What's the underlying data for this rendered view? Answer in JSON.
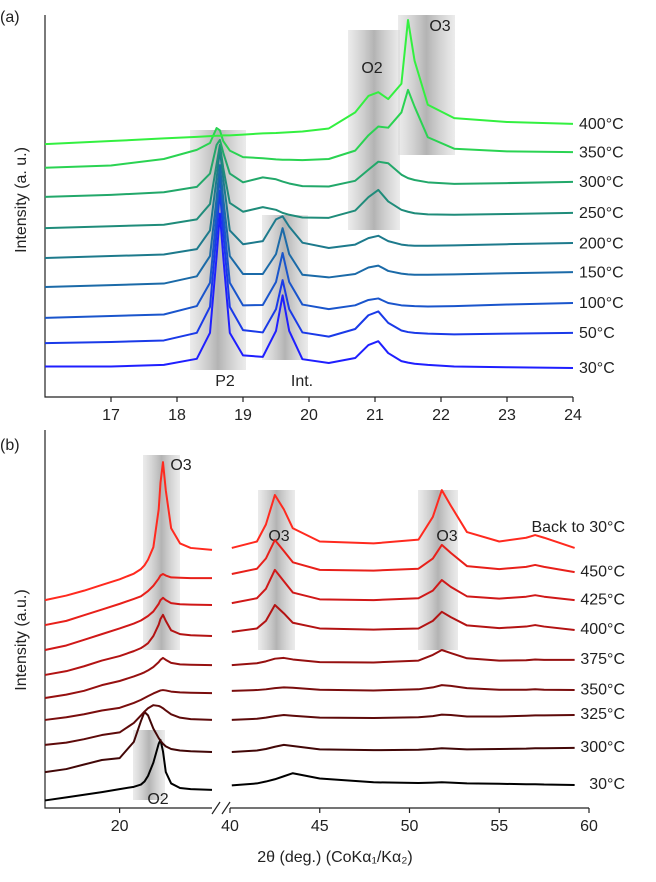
{
  "chart_data": [
    {
      "type": "line",
      "panel_label": "(a)",
      "ylabel": "Intensity (a. u.)",
      "xlim": [
        16,
        24
      ],
      "xticks": [
        17,
        18,
        19,
        20,
        21,
        22,
        23,
        24
      ],
      "ylim": [
        0,
        100
      ],
      "annotations": [
        "P2",
        "Int.",
        "O2",
        "O3"
      ],
      "x": [
        16,
        17,
        17.8,
        18.3,
        18.5,
        18.6,
        18.65,
        18.7,
        18.8,
        19.0,
        19.3,
        19.5,
        19.6,
        19.7,
        19.9,
        20.3,
        20.7,
        20.9,
        21.05,
        21.2,
        21.4,
        21.5,
        21.6,
        21.8,
        22.2,
        23,
        24
      ],
      "series": [
        {
          "name": "30°C",
          "color": "#1f1fff",
          "values": [
            8,
            8,
            8.4,
            10,
            16.8,
            36.8,
            48,
            36.8,
            16.8,
            10.9,
            10.5,
            17.3,
            26.6,
            17.3,
            9.9,
            8.9,
            10.2,
            13.6,
            14.6,
            11.5,
            9.4,
            9,
            8.7,
            8.4,
            8,
            7.8,
            7.6
          ]
        },
        {
          "name": "50°C",
          "color": "#1a3ae8",
          "values": [
            14.1,
            14.4,
            14.8,
            16.8,
            23.6,
            43.1,
            54,
            43.1,
            23.6,
            17.5,
            16.9,
            23,
            30.6,
            23,
            16.9,
            15.8,
            17.8,
            21.4,
            22.4,
            19.4,
            17.4,
            17,
            16.8,
            16.6,
            16.4,
            16.6,
            16.8
          ]
        },
        {
          "name": "100°C",
          "color": "#1a55cc",
          "values": [
            20.7,
            21.2,
            21.6,
            23.8,
            29.9,
            47.9,
            58,
            47.9,
            29.9,
            24,
            24.1,
            30.1,
            37.7,
            30.1,
            24.2,
            23,
            24,
            25.4,
            25.8,
            24.6,
            24,
            23.9,
            23.8,
            23.7,
            23.8,
            24.2,
            24.6
          ]
        },
        {
          "name": "150°C",
          "color": "#1b6aa8",
          "values": [
            28.8,
            29.3,
            29.7,
            31.6,
            36.9,
            52.1,
            60.7,
            52.1,
            36.9,
            32.2,
            32.2,
            37.4,
            44.2,
            37.4,
            32,
            31.3,
            32.2,
            33.9,
            34.4,
            33,
            32.3,
            32.1,
            32,
            32,
            32.1,
            32.4,
            32.7
          ]
        },
        {
          "name": "200°C",
          "color": "#1d7a8c",
          "values": [
            36.4,
            36.9,
            37.3,
            38.7,
            43.6,
            57.2,
            64.7,
            57.2,
            43.6,
            40,
            40.8,
            46.5,
            47.3,
            44.6,
            40.4,
            39,
            39.9,
            41.6,
            42.2,
            40.8,
            39.9,
            39.7,
            39.6,
            39.6,
            39.7,
            40,
            40.3
          ]
        },
        {
          "name": "250°C",
          "color": "#1f8c7a",
          "values": [
            44.2,
            44.7,
            45.1,
            46.5,
            50.5,
            61,
            66,
            60,
            50.8,
            48.5,
            49.7,
            49,
            48.2,
            47.7,
            47,
            46.9,
            48.8,
            52.3,
            54.2,
            51.2,
            49,
            48.5,
            48.1,
            47.8,
            47.7,
            47.9,
            48.2
          ]
        },
        {
          "name": "300°C",
          "color": "#22a86a",
          "values": [
            52.4,
            52.9,
            53.6,
            55,
            58.5,
            66,
            67.3,
            64,
            58.5,
            56.2,
            57.5,
            57,
            56.4,
            55.9,
            55.2,
            55.1,
            56.6,
            59.5,
            61.6,
            61.2,
            58.2,
            57.3,
            56.8,
            56.2,
            55.8,
            56,
            56.3
          ]
        },
        {
          "name": "350°C",
          "color": "#2ad352",
          "values": [
            60,
            60.6,
            62.3,
            64.7,
            66.5,
            70.4,
            69.8,
            67,
            64.5,
            62.8,
            62.5,
            62.2,
            62.1,
            62.1,
            62,
            62.3,
            64.5,
            68.5,
            70.8,
            70.5,
            74.5,
            80.4,
            76,
            68,
            65,
            64.3,
            64.1
          ]
        },
        {
          "name": "400°C",
          "color": "#33f040",
          "values": [
            66.2,
            67,
            67.7,
            68.1,
            68.3,
            68.4,
            68.4,
            68.5,
            68.5,
            68.7,
            69,
            69.1,
            69.2,
            69.3,
            69.5,
            70.3,
            74.5,
            78.8,
            79.8,
            78,
            82,
            98.7,
            88,
            76.5,
            73,
            72,
            71.5
          ]
        }
      ]
    },
    {
      "type": "brokenline",
      "panel_label": "(b)",
      "ylabel": "Intensity (a.u.)",
      "xlabel": "2θ (deg.) (CoKα₁/Kα₂)",
      "segments": [
        {
          "xlim": [
            15.8,
            25.2
          ],
          "xticks": [
            20
          ]
        },
        {
          "xlim": [
            40,
            60
          ],
          "xticks": [
            40,
            45,
            50,
            55,
            60
          ]
        }
      ],
      "ylim": [
        0,
        100
      ],
      "annotations": [
        "O3",
        "O3",
        "O3",
        "O2"
      ],
      "x": [
        [
          15.8,
          17,
          18,
          19,
          20,
          20.8,
          21.2,
          21.4,
          21.6,
          21.9,
          22.2,
          22.3,
          22.44,
          22.6,
          22.9,
          23.4,
          24,
          25.2
        ],
        [
          40.1,
          41.5,
          42,
          42.5,
          43,
          43.5,
          45,
          48,
          50.5,
          51.3,
          51.8,
          52.3,
          53.2,
          55,
          56.5,
          57,
          57.5,
          59.2
        ]
      ],
      "series": [
        {
          "name": "30°C",
          "color": "#000000",
          "values": [
            [
              2,
              2.8,
              3.5,
              4.2,
              5,
              5.6,
              6.2,
              7,
              8.5,
              12,
              17,
              18,
              15,
              9.5,
              6.5,
              5.3,
              5,
              4.8
            ],
            [
              6,
              6.5,
              7,
              7.6,
              8.4,
              9.2,
              7.8,
              6.8,
              6.6,
              6.7,
              6.8,
              6.7,
              6.5,
              6.4,
              6.3,
              6.3,
              6.2,
              6.1
            ]
          ]
        },
        {
          "name": "300°C",
          "color": "#420707",
          "values": [
            [
              9.5,
              10.3,
              11.5,
              12.7,
              13.2,
              17.5,
              23,
              25.4,
              24.5,
              21,
              18.5,
              17.8,
              17,
              16.3,
              15.6,
              15.2,
              15,
              14.8
            ],
            [
              14.8,
              15.2,
              15.6,
              16.2,
              16.7,
              16.4,
              15.5,
              15.3,
              15.4,
              15.6,
              15.8,
              15.7,
              15.5,
              15.6,
              15.7,
              15.8,
              15.8,
              15.9
            ]
          ]
        },
        {
          "name": "325°C",
          "color": "#5e0a0a",
          "values": [
            [
              16.7,
              17.3,
              18.2,
              19.3,
              20,
              22.5,
              24.5,
              25.5,
              26.4,
              27.2,
              27,
              26.8,
              26.4,
              25.8,
              24.8,
              23.9,
              23.5,
              23.3
            ],
            [
              23.3,
              23.6,
              23.9,
              24.3,
              24.6,
              24.4,
              23.9,
              23.8,
              24,
              24.3,
              24.7,
              24.6,
              24.2,
              24.2,
              24.4,
              24.5,
              24.5,
              24.6
            ]
          ]
        },
        {
          "name": "350°C",
          "color": "#7a0d0d",
          "values": [
            [
              23.3,
              24,
              24.8,
              25.8,
              26.5,
              27.8,
              28.6,
              29.1,
              29.6,
              30.3,
              30.9,
              31.1,
              31.2,
              31.1,
              30.8,
              30.6,
              30.5,
              30.4
            ],
            [
              31,
              31.2,
              31.4,
              31.7,
              31.9,
              31.8,
              31.3,
              31.1,
              31.4,
              31.9,
              32.5,
              32.3,
              31.7,
              31.3,
              31.3,
              31.4,
              31.3,
              31.2
            ]
          ]
        },
        {
          "name": "375°C",
          "color": "#961010",
          "values": [
            [
              29.1,
              30,
              31,
              32.5,
              33.6,
              34.8,
              35.5,
              35.9,
              36.4,
              37.3,
              38.6,
              39.2,
              39.7,
              39.2,
              38.4,
              38,
              37.9,
              37.8
            ],
            [
              37.8,
              38.3,
              38.8,
              39.5,
              39.7,
              39.3,
              38.6,
              38.5,
              39,
              40.5,
              41.8,
              41,
              39.6,
              39,
              39.1,
              39.3,
              39.2,
              39.2
            ]
          ]
        },
        {
          "name": "400°C",
          "color": "#b31313",
          "values": [
            [
              35.2,
              36.2,
              37.5,
              39,
              40.2,
              41.5,
              42.3,
              42.9,
              43.6,
              45.5,
              48.5,
              50,
              51.1,
              49.5,
              47,
              46,
              45.7,
              45.5
            ],
            [
              46.6,
              47.5,
              49.5,
              53.7,
              51.5,
              49,
              47.5,
              47.2,
              47.5,
              49.5,
              51.9,
              50.5,
              48.3,
              47.6,
              48,
              48.4,
              48,
              47.1
            ]
          ]
        },
        {
          "name": "425°C",
          "color": "#d01818",
          "values": [
            [
              41.8,
              43,
              44.5,
              46,
              47.5,
              48.8,
              49.6,
              50.2,
              50.8,
              52,
              54,
              55,
              55.6,
              55,
              54.2,
              53.9,
              53.8,
              53.7
            ],
            [
              54.2,
              55.5,
              58,
              63,
              60,
              57,
              55.2,
              55,
              55.5,
              57.5,
              60.3,
              58.5,
              56,
              55.4,
              55.9,
              56.3,
              55.9,
              55
            ]
          ]
        },
        {
          "name": "450°C",
          "color": "#e8201a",
          "values": [
            [
              48.4,
              49.5,
              51,
              52.5,
              54,
              55.3,
              56,
              56.7,
              57.4,
              58.8,
              60.7,
              61.5,
              61.9,
              61.5,
              61,
              60.9,
              60.8,
              60.8
            ],
            [
              61.9,
              63.3,
              66,
              70.9,
              68,
              65,
              63,
              62.8,
              63.3,
              66,
              69.6,
              67.5,
              64,
              63.2,
              63.8,
              64.3,
              63.8,
              62.4
            ]
          ]
        },
        {
          "name": "Back to 30°C",
          "color": "#ff2a1f",
          "values": [
            [
              55,
              56.2,
              57.5,
              59,
              60.5,
              62,
              63.2,
              64.2,
              65.7,
              69,
              79,
              86,
              91.5,
              84,
              74,
              70,
              68.8,
              68.3
            ],
            [
              68.8,
              70.5,
              75,
              82.8,
              79,
              74,
              70.5,
              70,
              71,
              77,
              84.1,
              80,
              73,
              70.5,
              71.5,
              72.2,
              71.5,
              68.8
            ]
          ]
        }
      ]
    }
  ]
}
